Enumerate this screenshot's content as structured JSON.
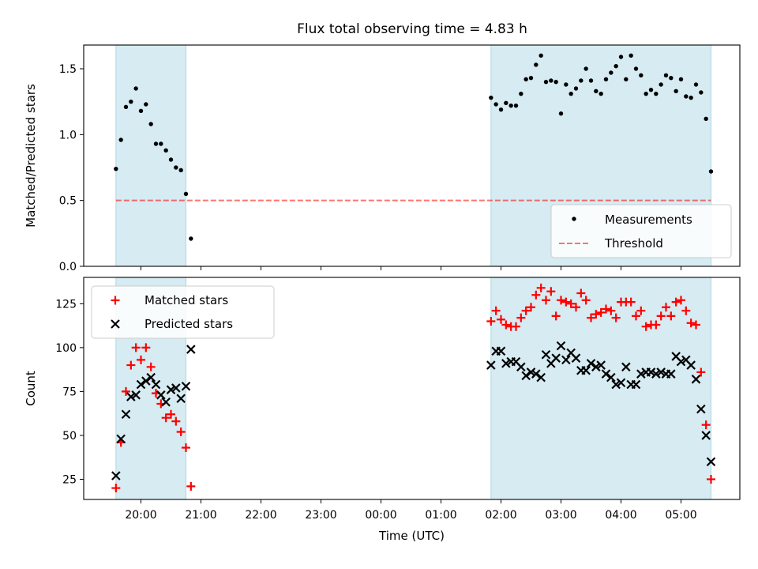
{
  "title": "Flux total observing time = 4.83 h",
  "colors": {
    "band": "#add8e6",
    "measurement": "#000000",
    "threshold": "#ff0000",
    "matched": "#ff0000",
    "predicted": "#000000"
  },
  "chart_data": [
    {
      "type": "scatter",
      "ylabel": "Matched/Predicted stars",
      "ylim": [
        0,
        1.68
      ],
      "yticks": [
        "0.0",
        "0.5",
        "1.0",
        "1.5"
      ],
      "grid": false,
      "legend_position": "lower right",
      "threshold": {
        "name": "Threshold",
        "value": 0.5
      },
      "observing_windows": [
        [
          "19:35",
          "20:45"
        ],
        [
          "01:50",
          "05:30"
        ]
      ],
      "series": [
        {
          "name": "Measurements",
          "points": [
            [
              "19:35",
              0.74
            ],
            [
              "19:40",
              0.96
            ],
            [
              "19:45",
              1.21
            ],
            [
              "19:50",
              1.25
            ],
            [
              "19:55",
              1.35
            ],
            [
              "20:00",
              1.18
            ],
            [
              "20:05",
              1.23
            ],
            [
              "20:10",
              1.08
            ],
            [
              "20:15",
              0.93
            ],
            [
              "20:20",
              0.93
            ],
            [
              "20:25",
              0.88
            ],
            [
              "20:30",
              0.81
            ],
            [
              "20:35",
              0.75
            ],
            [
              "20:40",
              0.73
            ],
            [
              "20:45",
              0.55
            ],
            [
              "20:50",
              0.21
            ],
            [
              "01:50",
              1.28
            ],
            [
              "01:55",
              1.23
            ],
            [
              "02:00",
              1.19
            ],
            [
              "02:05",
              1.24
            ],
            [
              "02:10",
              1.22
            ],
            [
              "02:15",
              1.22
            ],
            [
              "02:20",
              1.31
            ],
            [
              "02:25",
              1.42
            ],
            [
              "02:30",
              1.43
            ],
            [
              "02:35",
              1.53
            ],
            [
              "02:40",
              1.6
            ],
            [
              "02:45",
              1.4
            ],
            [
              "02:50",
              1.41
            ],
            [
              "02:55",
              1.4
            ],
            [
              "03:00",
              1.16
            ],
            [
              "03:05",
              1.38
            ],
            [
              "03:10",
              1.31
            ],
            [
              "03:15",
              1.35
            ],
            [
              "03:20",
              1.41
            ],
            [
              "03:25",
              1.5
            ],
            [
              "03:30",
              1.41
            ],
            [
              "03:35",
              1.33
            ],
            [
              "03:40",
              1.31
            ],
            [
              "03:45",
              1.42
            ],
            [
              "03:50",
              1.47
            ],
            [
              "03:55",
              1.52
            ],
            [
              "04:00",
              1.59
            ],
            [
              "04:05",
              1.42
            ],
            [
              "04:10",
              1.6
            ],
            [
              "04:15",
              1.5
            ],
            [
              "04:20",
              1.45
            ],
            [
              "04:25",
              1.31
            ],
            [
              "04:30",
              1.34
            ],
            [
              "04:35",
              1.31
            ],
            [
              "04:40",
              1.38
            ],
            [
              "04:45",
              1.45
            ],
            [
              "04:50",
              1.43
            ],
            [
              "04:55",
              1.33
            ],
            [
              "05:00",
              1.42
            ],
            [
              "05:05",
              1.29
            ],
            [
              "05:10",
              1.28
            ],
            [
              "05:15",
              1.38
            ],
            [
              "05:20",
              1.32
            ],
            [
              "05:25",
              1.12
            ],
            [
              "05:30",
              0.72
            ]
          ]
        }
      ]
    },
    {
      "type": "scatter",
      "xlabel": "Time (UTC)",
      "ylabel": "Count",
      "ylim": [
        13.5,
        140
      ],
      "yticks": [
        "25",
        "50",
        "75",
        "100",
        "125"
      ],
      "xticks": [
        "20:00",
        "21:00",
        "22:00",
        "23:00",
        "00:00",
        "01:00",
        "02:00",
        "03:00",
        "04:00",
        "05:00"
      ],
      "grid": false,
      "legend_position": "upper left",
      "observing_windows": [
        [
          "19:35",
          "20:45"
        ],
        [
          "01:50",
          "05:30"
        ]
      ],
      "series": [
        {
          "name": "Matched stars",
          "marker": "+",
          "points": [
            [
              "19:35",
              20
            ],
            [
              "19:40",
              46
            ],
            [
              "19:45",
              75
            ],
            [
              "19:50",
              90
            ],
            [
              "19:55",
              100
            ],
            [
              "20:00",
              93
            ],
            [
              "20:05",
              100
            ],
            [
              "20:10",
              89
            ],
            [
              "20:15",
              74
            ],
            [
              "20:20",
              68
            ],
            [
              "20:25",
              60
            ],
            [
              "20:30",
              62
            ],
            [
              "20:35",
              58
            ],
            [
              "20:40",
              52
            ],
            [
              "20:45",
              43
            ],
            [
              "20:50",
              21
            ],
            [
              "01:50",
              115
            ],
            [
              "01:55",
              121
            ],
            [
              "02:00",
              116
            ],
            [
              "02:05",
              113
            ],
            [
              "02:10",
              112
            ],
            [
              "02:15",
              112
            ],
            [
              "02:20",
              117
            ],
            [
              "02:25",
              121
            ],
            [
              "02:30",
              123
            ],
            [
              "02:35",
              130
            ],
            [
              "02:40",
              134
            ],
            [
              "02:45",
              127
            ],
            [
              "02:50",
              132
            ],
            [
              "02:55",
              118
            ],
            [
              "03:00",
              127
            ],
            [
              "03:05",
              126
            ],
            [
              "03:10",
              125
            ],
            [
              "03:15",
              123
            ],
            [
              "03:20",
              131
            ],
            [
              "03:25",
              127
            ],
            [
              "03:30",
              117
            ],
            [
              "03:35",
              119
            ],
            [
              "03:40",
              120
            ],
            [
              "03:45",
              122
            ],
            [
              "03:50",
              121
            ],
            [
              "03:55",
              117
            ],
            [
              "04:00",
              126
            ],
            [
              "04:05",
              126
            ],
            [
              "04:10",
              126
            ],
            [
              "04:15",
              118
            ],
            [
              "04:20",
              121
            ],
            [
              "04:25",
              112
            ],
            [
              "04:30",
              113
            ],
            [
              "04:35",
              113
            ],
            [
              "04:40",
              118
            ],
            [
              "04:45",
              123
            ],
            [
              "04:50",
              118
            ],
            [
              "04:55",
              126
            ],
            [
              "05:00",
              127
            ],
            [
              "05:05",
              121
            ],
            [
              "05:10",
              114
            ],
            [
              "05:15",
              113
            ],
            [
              "05:20",
              86
            ],
            [
              "05:25",
              56
            ],
            [
              "05:30",
              25
            ]
          ]
        },
        {
          "name": "Predicted stars",
          "marker": "x",
          "points": [
            [
              "19:35",
              27
            ],
            [
              "19:40",
              48
            ],
            [
              "19:45",
              62
            ],
            [
              "19:50",
              72
            ],
            [
              "19:55",
              73
            ],
            [
              "20:00",
              79
            ],
            [
              "20:05",
              81
            ],
            [
              "20:10",
              83
            ],
            [
              "20:15",
              79
            ],
            [
              "20:20",
              73
            ],
            [
              "20:25",
              69
            ],
            [
              "20:30",
              76
            ],
            [
              "20:35",
              77
            ],
            [
              "20:40",
              71
            ],
            [
              "20:45",
              78
            ],
            [
              "20:50",
              99
            ],
            [
              "01:50",
              90
            ],
            [
              "01:55",
              98
            ],
            [
              "02:00",
              98
            ],
            [
              "02:05",
              91
            ],
            [
              "02:10",
              92
            ],
            [
              "02:15",
              92
            ],
            [
              "02:20",
              89
            ],
            [
              "02:25",
              84
            ],
            [
              "02:30",
              86
            ],
            [
              "02:35",
              85
            ],
            [
              "02:40",
              83
            ],
            [
              "02:45",
              96
            ],
            [
              "02:50",
              91
            ],
            [
              "02:55",
              94
            ],
            [
              "03:00",
              101
            ],
            [
              "03:05",
              93
            ],
            [
              "03:10",
              97
            ],
            [
              "03:15",
              94
            ],
            [
              "03:20",
              87
            ],
            [
              "03:25",
              87
            ],
            [
              "03:30",
              91
            ],
            [
              "03:35",
              89
            ],
            [
              "03:40",
              90
            ],
            [
              "03:45",
              85
            ],
            [
              "03:50",
              83
            ],
            [
              "03:55",
              79
            ],
            [
              "04:00",
              80
            ],
            [
              "04:05",
              89
            ],
            [
              "04:10",
              79
            ],
            [
              "04:15",
              79
            ],
            [
              "04:20",
              85
            ],
            [
              "04:25",
              86
            ],
            [
              "04:30",
              86
            ],
            [
              "04:35",
              85
            ],
            [
              "04:40",
              86
            ],
            [
              "04:45",
              85
            ],
            [
              "04:50",
              85
            ],
            [
              "04:55",
              95
            ],
            [
              "05:00",
              92
            ],
            [
              "05:05",
              93
            ],
            [
              "05:10",
              90
            ],
            [
              "05:15",
              82
            ],
            [
              "05:20",
              65
            ],
            [
              "05:25",
              50
            ],
            [
              "05:30",
              35
            ]
          ]
        }
      ]
    }
  ]
}
